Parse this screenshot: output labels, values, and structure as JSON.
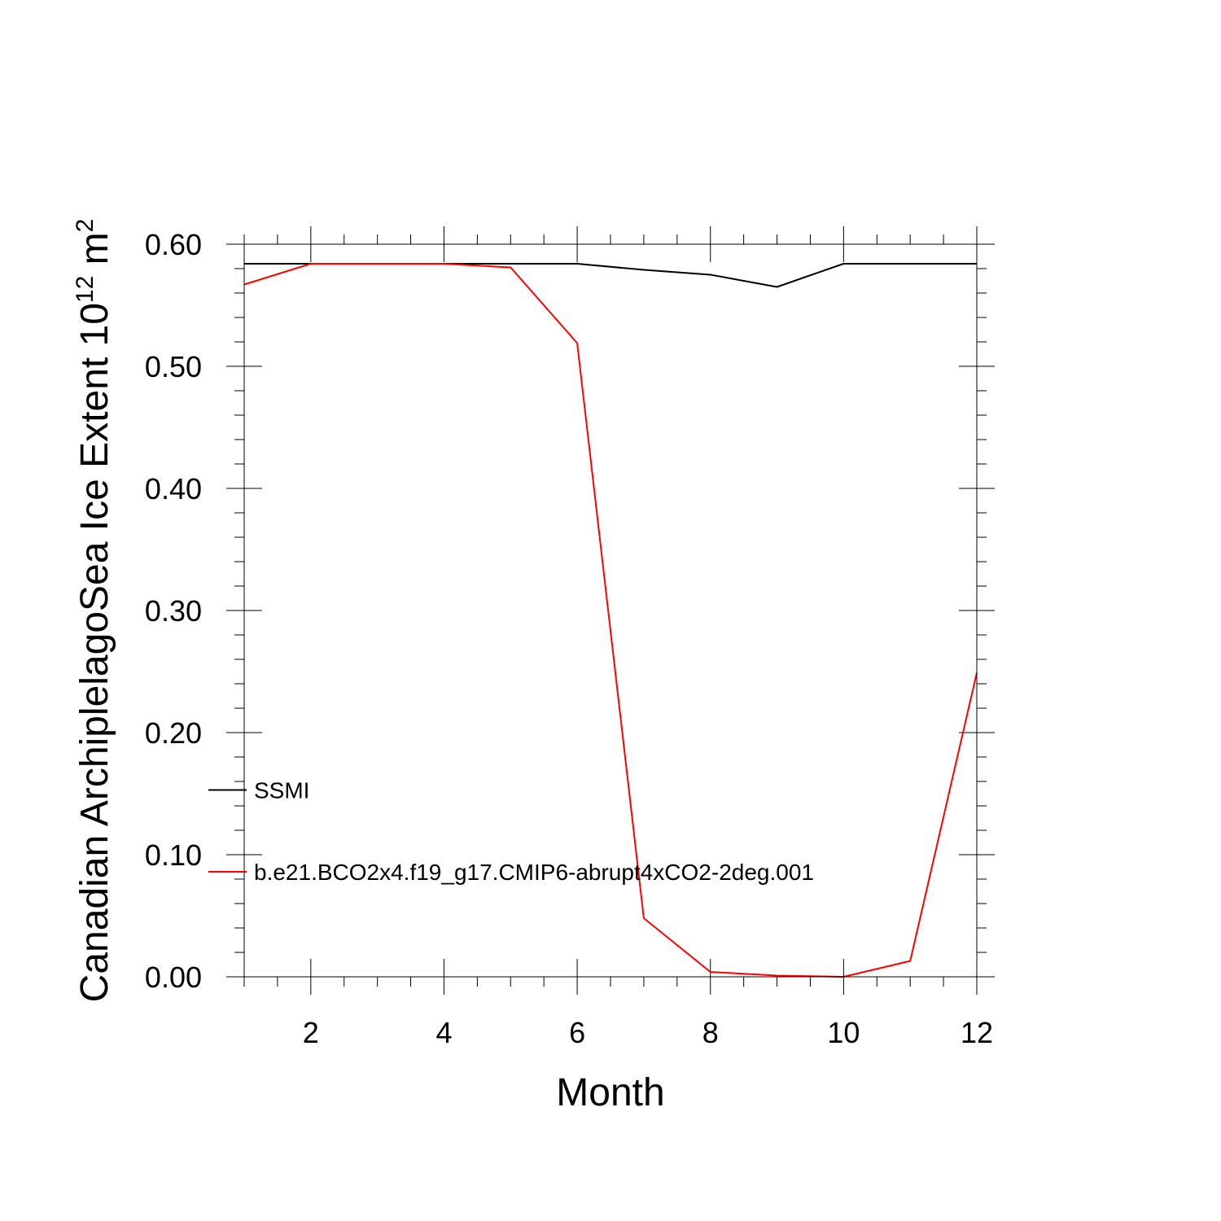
{
  "chart_data": {
    "type": "line",
    "xlabel": "Month",
    "ylabel": {
      "main": "Canadian ArchiplelagoSea Ice Extent 10",
      "exponent": "12",
      "unit": " m",
      "unit_exponent": "2"
    },
    "xlim": [
      1,
      12
    ],
    "ylim": [
      0,
      0.6
    ],
    "x_ticks": [
      2,
      4,
      6,
      8,
      10,
      12
    ],
    "y_ticks": [
      "0.00",
      "0.10",
      "0.20",
      "0.30",
      "0.40",
      "0.50",
      "0.60"
    ],
    "grid": false,
    "legend_placement": "lower-left",
    "x": [
      1,
      2,
      3,
      4,
      5,
      6,
      7,
      8,
      9,
      10,
      11,
      12
    ],
    "series": [
      {
        "name": "SSMI",
        "color": "#000000",
        "values": [
          0.584,
          0.584,
          0.584,
          0.584,
          0.584,
          0.584,
          0.579,
          0.575,
          0.565,
          0.584,
          0.584,
          0.584
        ]
      },
      {
        "name": "b.e21.BCO2x4.f19_g17.CMIP6-abrupt4xCO2-2deg.001",
        "color": "#ff0000",
        "values": [
          0.567,
          0.584,
          0.584,
          0.584,
          0.581,
          0.519,
          0.048,
          0.004,
          0.001,
          0.0,
          0.013,
          0.249
        ]
      }
    ]
  }
}
